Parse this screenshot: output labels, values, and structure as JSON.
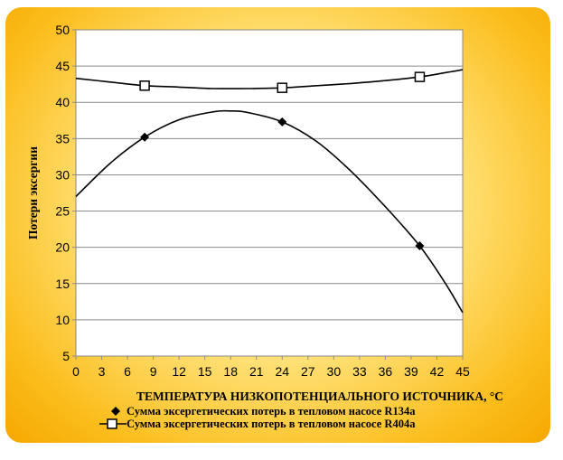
{
  "chart_data": {
    "type": "line",
    "title": "",
    "xlabel": "ТЕМПЕРАТУРА НИЗКОПОТЕНЦИАЛЬНОГО  ИСТОЧНИКА,  °С",
    "ylabel": "Потери  эксергии",
    "xlim": [
      0,
      45
    ],
    "ylim": [
      5,
      50
    ],
    "xticks": [
      0,
      3,
      6,
      9,
      12,
      15,
      18,
      21,
      24,
      27,
      30,
      33,
      36,
      39,
      42,
      45
    ],
    "yticks": [
      5,
      10,
      15,
      20,
      25,
      30,
      35,
      40,
      45,
      50
    ],
    "grid": "horizontal",
    "legend": "bottom",
    "series": [
      {
        "name": "Сумма эксергетических потерь в тепловом насосе R134a",
        "marker": "filled-diamond",
        "color": "#000000",
        "points": [
          [
            8,
            35.2
          ],
          [
            24,
            37.3
          ],
          [
            40,
            20.2
          ]
        ],
        "curve": [
          [
            0,
            27.0
          ],
          [
            4,
            31.6
          ],
          [
            8,
            35.2
          ],
          [
            12,
            37.6
          ],
          [
            16,
            38.7
          ],
          [
            18,
            38.8
          ],
          [
            20,
            38.6
          ],
          [
            24,
            37.3
          ],
          [
            28,
            34.6
          ],
          [
            32,
            30.5
          ],
          [
            36,
            25.6
          ],
          [
            40,
            20.2
          ],
          [
            43,
            15.0
          ],
          [
            45,
            11.0
          ]
        ]
      },
      {
        "name": "Сумма эксергетических потерь в тепловом насосе R404a",
        "marker": "open-square",
        "color": "#000000",
        "points": [
          [
            8,
            42.3
          ],
          [
            24,
            42.0
          ],
          [
            40,
            43.5
          ]
        ],
        "curve": [
          [
            0,
            43.3
          ],
          [
            4,
            42.8
          ],
          [
            8,
            42.3
          ],
          [
            12,
            42.1
          ],
          [
            16,
            41.9
          ],
          [
            20,
            41.9
          ],
          [
            24,
            42.0
          ],
          [
            28,
            42.3
          ],
          [
            32,
            42.6
          ],
          [
            36,
            43.0
          ],
          [
            40,
            43.5
          ],
          [
            43,
            44.1
          ],
          [
            45,
            44.5
          ]
        ]
      }
    ]
  }
}
